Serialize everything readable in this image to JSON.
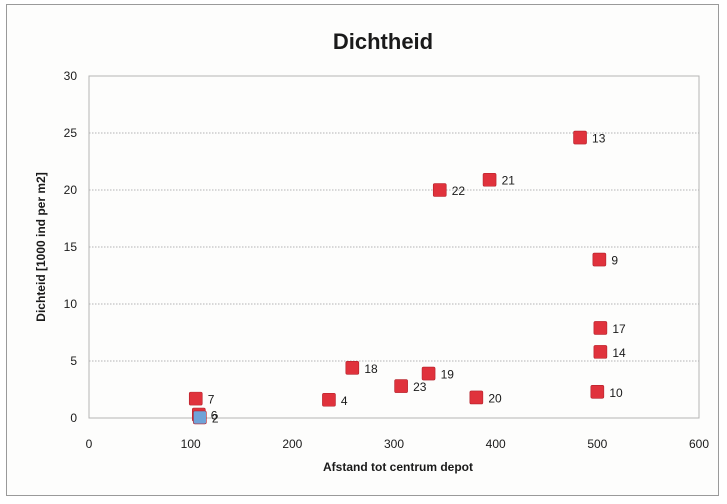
{
  "chart_data": {
    "type": "scatter",
    "title": "Dichtheid",
    "xlabel": "Afstand tot centrum depot",
    "ylabel": "Dichteid [1000 ind per m2]",
    "xlim": [
      0,
      600
    ],
    "ylim": [
      0,
      30
    ],
    "x_ticks": [
      "0",
      "100",
      "200",
      "300",
      "400",
      "500",
      "600"
    ],
    "y_ticks": [
      "0",
      "5",
      "10",
      "15",
      "20",
      "25",
      "30"
    ],
    "grid": true,
    "marker_color": "#e0323c",
    "highlight_color": "#6fa3d8",
    "points": [
      {
        "label": "13",
        "x": 483,
        "y": 24.6
      },
      {
        "label": "21",
        "x": 394,
        "y": 20.9
      },
      {
        "label": "22",
        "x": 345,
        "y": 20.0
      },
      {
        "label": "9",
        "x": 502,
        "y": 13.9
      },
      {
        "label": "17",
        "x": 503,
        "y": 7.9
      },
      {
        "label": "14",
        "x": 503,
        "y": 5.8
      },
      {
        "label": "18",
        "x": 259,
        "y": 4.4
      },
      {
        "label": "19",
        "x": 334,
        "y": 3.9
      },
      {
        "label": "23",
        "x": 307,
        "y": 2.8
      },
      {
        "label": "10",
        "x": 500,
        "y": 2.3
      },
      {
        "label": "20",
        "x": 381,
        "y": 1.8
      },
      {
        "label": "4",
        "x": 236,
        "y": 1.6
      },
      {
        "label": "7",
        "x": 105,
        "y": 1.7
      },
      {
        "label": "6",
        "x": 108,
        "y": 0.3
      },
      {
        "label": "2",
        "x": 109,
        "y": 0.05,
        "highlight": true
      }
    ]
  }
}
